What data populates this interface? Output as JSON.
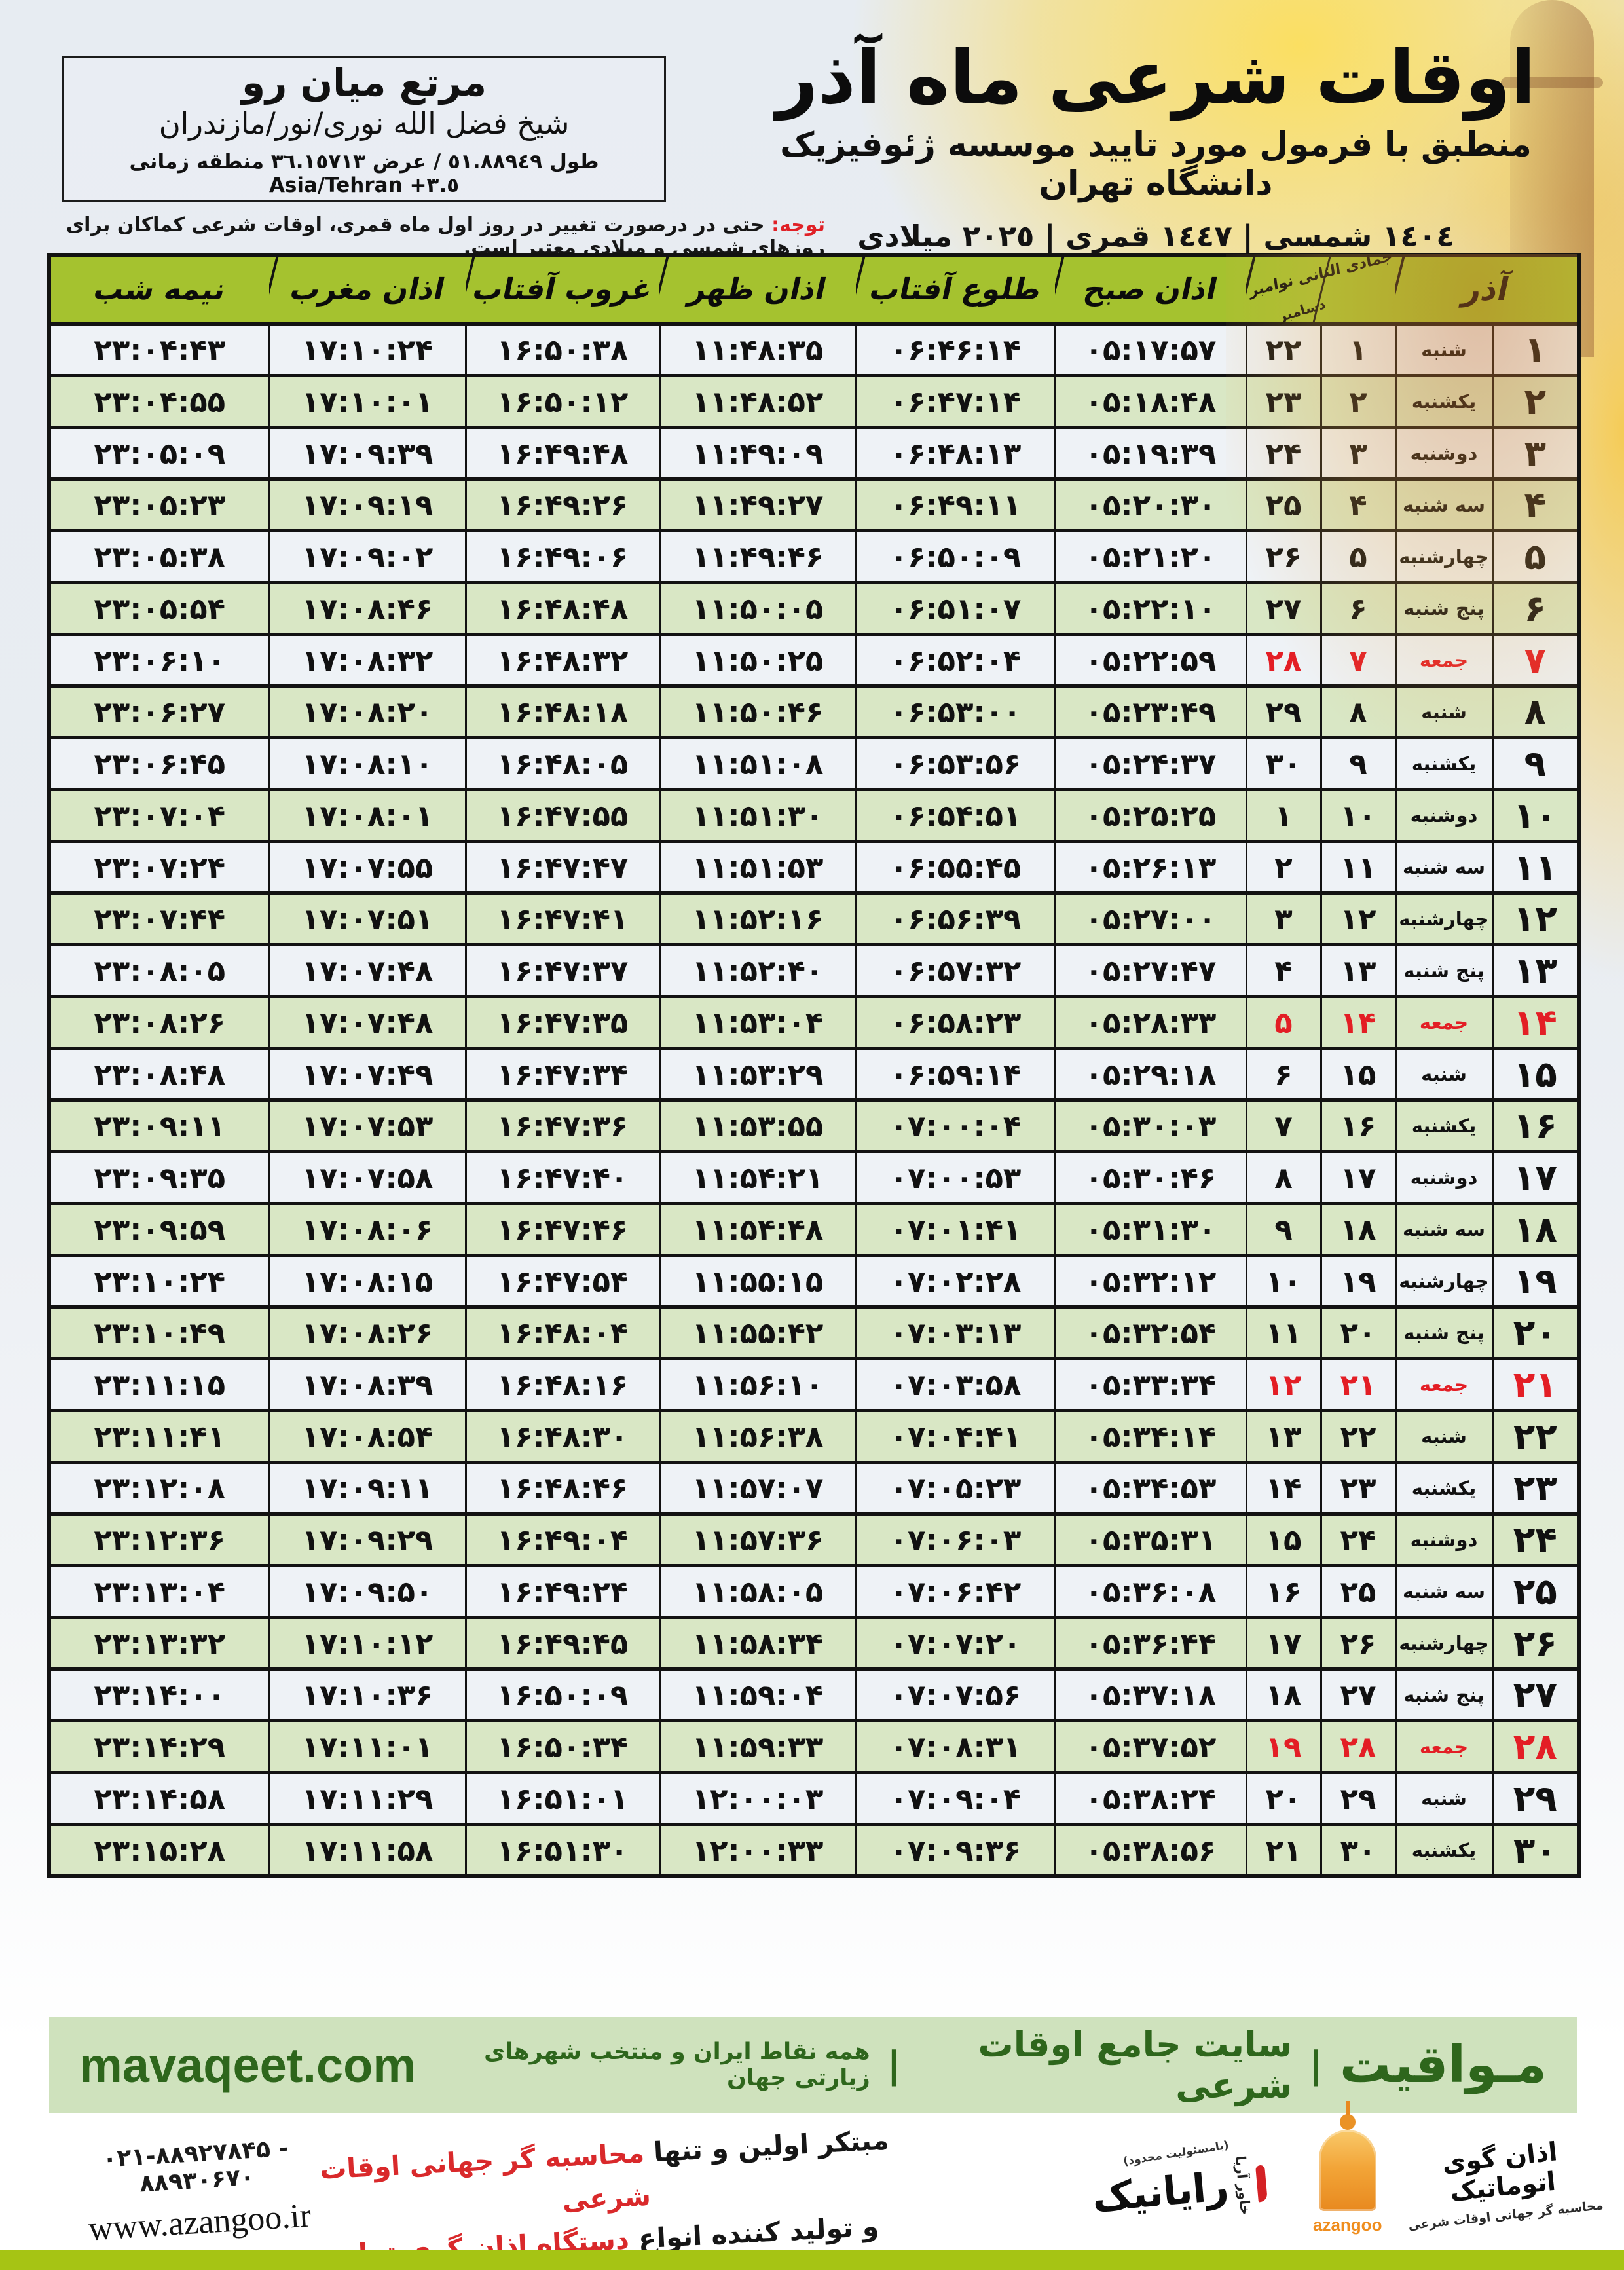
{
  "header": {
    "title": "اوقات شرعی ماه آذر",
    "subtitle": "منطبق با فرمول مورد تایید موسسه ژئوفیزیک دانشگاه تهران",
    "calendar_line": "١٤٠٤ شمسی | ١٤٤٧ قمری | ٢٠٢٥ میلادی"
  },
  "location_box": {
    "name": "مرتع میان رو",
    "region": "شیخ فضل الله نوری/نور/مازندران",
    "coords_rtl": "طول ٥١.٨٨٩٤٩ / عرض ٣٦.١٥٧١٣ منطقه زمانی",
    "coords_ltr": "Asia/Tehran +٣.٥"
  },
  "notice": {
    "label": "توجه:",
    "text": " حتی در درصورت تغییر در روز اول ماه قمری، اوقات شرعی کماکان برای روزهای شمسی و میلادی معتبر است."
  },
  "table": {
    "month_header": "آذر",
    "dual_header_top": "جمادی الثانی نوامبر",
    "dual_header_bottom": "دسامبر",
    "time_headers": [
      "اذان صبح",
      "طلوع آفتاب",
      "اذان ظهر",
      "غروب آفتاب",
      "اذان مغرب",
      "نیمه شب"
    ],
    "friday_label": "جمعه",
    "rows": [
      {
        "d": "۱",
        "w": "شنبه",
        "l": "۱",
        "g": "۲۲",
        "t": [
          "۰۵:۱۷:۵۷",
          "۰۶:۴۶:۱۴",
          "۱۱:۴۸:۳۵",
          "۱۶:۵۰:۳۸",
          "۱۷:۱۰:۲۴",
          "۲۳:۰۴:۴۳"
        ]
      },
      {
        "d": "۲",
        "w": "یکشنبه",
        "l": "۲",
        "g": "۲۳",
        "t": [
          "۰۵:۱۸:۴۸",
          "۰۶:۴۷:۱۴",
          "۱۱:۴۸:۵۲",
          "۱۶:۵۰:۱۲",
          "۱۷:۱۰:۰۱",
          "۲۳:۰۴:۵۵"
        ]
      },
      {
        "d": "۳",
        "w": "دوشنبه",
        "l": "۳",
        "g": "۲۴",
        "t": [
          "۰۵:۱۹:۳۹",
          "۰۶:۴۸:۱۳",
          "۱۱:۴۹:۰۹",
          "۱۶:۴۹:۴۸",
          "۱۷:۰۹:۳۹",
          "۲۳:۰۵:۰۹"
        ]
      },
      {
        "d": "۴",
        "w": "سه شنبه",
        "l": "۴",
        "g": "۲۵",
        "t": [
          "۰۵:۲۰:۳۰",
          "۰۶:۴۹:۱۱",
          "۱۱:۴۹:۲۷",
          "۱۶:۴۹:۲۶",
          "۱۷:۰۹:۱۹",
          "۲۳:۰۵:۲۳"
        ]
      },
      {
        "d": "۵",
        "w": "چهارشنبه",
        "l": "۵",
        "g": "۲۶",
        "t": [
          "۰۵:۲۱:۲۰",
          "۰۶:۵۰:۰۹",
          "۱۱:۴۹:۴۶",
          "۱۶:۴۹:۰۶",
          "۱۷:۰۹:۰۲",
          "۲۳:۰۵:۳۸"
        ]
      },
      {
        "d": "۶",
        "w": "پنج شنبه",
        "l": "۶",
        "g": "۲۷",
        "t": [
          "۰۵:۲۲:۱۰",
          "۰۶:۵۱:۰۷",
          "۱۱:۵۰:۰۵",
          "۱۶:۴۸:۴۸",
          "۱۷:۰۸:۴۶",
          "۲۳:۰۵:۵۴"
        ]
      },
      {
        "d": "۷",
        "w": "جمعه",
        "l": "۷",
        "g": "۲۸",
        "t": [
          "۰۵:۲۲:۵۹",
          "۰۶:۵۲:۰۴",
          "۱۱:۵۰:۲۵",
          "۱۶:۴۸:۳۲",
          "۱۷:۰۸:۳۲",
          "۲۳:۰۶:۱۰"
        ]
      },
      {
        "d": "۸",
        "w": "شنبه",
        "l": "۸",
        "g": "۲۹",
        "t": [
          "۰۵:۲۳:۴۹",
          "۰۶:۵۳:۰۰",
          "۱۱:۵۰:۴۶",
          "۱۶:۴۸:۱۸",
          "۱۷:۰۸:۲۰",
          "۲۳:۰۶:۲۷"
        ]
      },
      {
        "d": "۹",
        "w": "یکشنبه",
        "l": "۹",
        "g": "۳۰",
        "t": [
          "۰۵:۲۴:۳۷",
          "۰۶:۵۳:۵۶",
          "۱۱:۵۱:۰۸",
          "۱۶:۴۸:۰۵",
          "۱۷:۰۸:۱۰",
          "۲۳:۰۶:۴۵"
        ]
      },
      {
        "d": "۱۰",
        "w": "دوشنبه",
        "l": "۱۰",
        "g": "۱",
        "t": [
          "۰۵:۲۵:۲۵",
          "۰۶:۵۴:۵۱",
          "۱۱:۵۱:۳۰",
          "۱۶:۴۷:۵۵",
          "۱۷:۰۸:۰۱",
          "۲۳:۰۷:۰۴"
        ]
      },
      {
        "d": "۱۱",
        "w": "سه شنبه",
        "l": "۱۱",
        "g": "۲",
        "t": [
          "۰۵:۲۶:۱۳",
          "۰۶:۵۵:۴۵",
          "۱۱:۵۱:۵۳",
          "۱۶:۴۷:۴۷",
          "۱۷:۰۷:۵۵",
          "۲۳:۰۷:۲۴"
        ]
      },
      {
        "d": "۱۲",
        "w": "چهارشنبه",
        "l": "۱۲",
        "g": "۳",
        "t": [
          "۰۵:۲۷:۰۰",
          "۰۶:۵۶:۳۹",
          "۱۱:۵۲:۱۶",
          "۱۶:۴۷:۴۱",
          "۱۷:۰۷:۵۱",
          "۲۳:۰۷:۴۴"
        ]
      },
      {
        "d": "۱۳",
        "w": "پنج شنبه",
        "l": "۱۳",
        "g": "۴",
        "t": [
          "۰۵:۲۷:۴۷",
          "۰۶:۵۷:۳۲",
          "۱۱:۵۲:۴۰",
          "۱۶:۴۷:۳۷",
          "۱۷:۰۷:۴۸",
          "۲۳:۰۸:۰۵"
        ]
      },
      {
        "d": "۱۴",
        "w": "جمعه",
        "l": "۱۴",
        "g": "۵",
        "t": [
          "۰۵:۲۸:۳۳",
          "۰۶:۵۸:۲۳",
          "۱۱:۵۳:۰۴",
          "۱۶:۴۷:۳۵",
          "۱۷:۰۷:۴۸",
          "۲۳:۰۸:۲۶"
        ]
      },
      {
        "d": "۱۵",
        "w": "شنبه",
        "l": "۱۵",
        "g": "۶",
        "t": [
          "۰۵:۲۹:۱۸",
          "۰۶:۵۹:۱۴",
          "۱۱:۵۳:۲۹",
          "۱۶:۴۷:۳۴",
          "۱۷:۰۷:۴۹",
          "۲۳:۰۸:۴۸"
        ]
      },
      {
        "d": "۱۶",
        "w": "یکشنبه",
        "l": "۱۶",
        "g": "۷",
        "t": [
          "۰۵:۳۰:۰۳",
          "۰۷:۰۰:۰۴",
          "۱۱:۵۳:۵۵",
          "۱۶:۴۷:۳۶",
          "۱۷:۰۷:۵۳",
          "۲۳:۰۹:۱۱"
        ]
      },
      {
        "d": "۱۷",
        "w": "دوشنبه",
        "l": "۱۷",
        "g": "۸",
        "t": [
          "۰۵:۳۰:۴۶",
          "۰۷:۰۰:۵۳",
          "۱۱:۵۴:۲۱",
          "۱۶:۴۷:۴۰",
          "۱۷:۰۷:۵۸",
          "۲۳:۰۹:۳۵"
        ]
      },
      {
        "d": "۱۸",
        "w": "سه شنبه",
        "l": "۱۸",
        "g": "۹",
        "t": [
          "۰۵:۳۱:۳۰",
          "۰۷:۰۱:۴۱",
          "۱۱:۵۴:۴۸",
          "۱۶:۴۷:۴۶",
          "۱۷:۰۸:۰۶",
          "۲۳:۰۹:۵۹"
        ]
      },
      {
        "d": "۱۹",
        "w": "چهارشنبه",
        "l": "۱۹",
        "g": "۱۰",
        "t": [
          "۰۵:۳۲:۱۲",
          "۰۷:۰۲:۲۸",
          "۱۱:۵۵:۱۵",
          "۱۶:۴۷:۵۴",
          "۱۷:۰۸:۱۵",
          "۲۳:۱۰:۲۴"
        ]
      },
      {
        "d": "۲۰",
        "w": "پنج شنبه",
        "l": "۲۰",
        "g": "۱۱",
        "t": [
          "۰۵:۳۲:۵۴",
          "۰۷:۰۳:۱۳",
          "۱۱:۵۵:۴۲",
          "۱۶:۴۸:۰۴",
          "۱۷:۰۸:۲۶",
          "۲۳:۱۰:۴۹"
        ]
      },
      {
        "d": "۲۱",
        "w": "جمعه",
        "l": "۲۱",
        "g": "۱۲",
        "t": [
          "۰۵:۳۳:۳۴",
          "۰۷:۰۳:۵۸",
          "۱۱:۵۶:۱۰",
          "۱۶:۴۸:۱۶",
          "۱۷:۰۸:۳۹",
          "۲۳:۱۱:۱۵"
        ]
      },
      {
        "d": "۲۲",
        "w": "شنبه",
        "l": "۲۲",
        "g": "۱۳",
        "t": [
          "۰۵:۳۴:۱۴",
          "۰۷:۰۴:۴۱",
          "۱۱:۵۶:۳۸",
          "۱۶:۴۸:۳۰",
          "۱۷:۰۸:۵۴",
          "۲۳:۱۱:۴۱"
        ]
      },
      {
        "d": "۲۳",
        "w": "یکشنبه",
        "l": "۲۳",
        "g": "۱۴",
        "t": [
          "۰۵:۳۴:۵۳",
          "۰۷:۰۵:۲۳",
          "۱۱:۵۷:۰۷",
          "۱۶:۴۸:۴۶",
          "۱۷:۰۹:۱۱",
          "۲۳:۱۲:۰۸"
        ]
      },
      {
        "d": "۲۴",
        "w": "دوشنبه",
        "l": "۲۴",
        "g": "۱۵",
        "t": [
          "۰۵:۳۵:۳۱",
          "۰۷:۰۶:۰۳",
          "۱۱:۵۷:۳۶",
          "۱۶:۴۹:۰۴",
          "۱۷:۰۹:۲۹",
          "۲۳:۱۲:۳۶"
        ]
      },
      {
        "d": "۲۵",
        "w": "سه شنبه",
        "l": "۲۵",
        "g": "۱۶",
        "t": [
          "۰۵:۳۶:۰۸",
          "۰۷:۰۶:۴۲",
          "۱۱:۵۸:۰۵",
          "۱۶:۴۹:۲۴",
          "۱۷:۰۹:۵۰",
          "۲۳:۱۳:۰۴"
        ]
      },
      {
        "d": "۲۶",
        "w": "چهارشنبه",
        "l": "۲۶",
        "g": "۱۷",
        "t": [
          "۰۵:۳۶:۴۴",
          "۰۷:۰۷:۲۰",
          "۱۱:۵۸:۳۴",
          "۱۶:۴۹:۴۵",
          "۱۷:۱۰:۱۲",
          "۲۳:۱۳:۳۲"
        ]
      },
      {
        "d": "۲۷",
        "w": "پنج شنبه",
        "l": "۲۷",
        "g": "۱۸",
        "t": [
          "۰۵:۳۷:۱۸",
          "۰۷:۰۷:۵۶",
          "۱۱:۵۹:۰۴",
          "۱۶:۵۰:۰۹",
          "۱۷:۱۰:۳۶",
          "۲۳:۱۴:۰۰"
        ]
      },
      {
        "d": "۲۸",
        "w": "جمعه",
        "l": "۲۸",
        "g": "۱۹",
        "t": [
          "۰۵:۳۷:۵۲",
          "۰۷:۰۸:۳۱",
          "۱۱:۵۹:۳۳",
          "۱۶:۵۰:۳۴",
          "۱۷:۱۱:۰۱",
          "۲۳:۱۴:۲۹"
        ]
      },
      {
        "d": "۲۹",
        "w": "شنبه",
        "l": "۲۹",
        "g": "۲۰",
        "t": [
          "۰۵:۳۸:۲۴",
          "۰۷:۰۹:۰۴",
          "۱۲:۰۰:۰۳",
          "۱۶:۵۱:۰۱",
          "۱۷:۱۱:۲۹",
          "۲۳:۱۴:۵۸"
        ]
      },
      {
        "d": "۳۰",
        "w": "یکشنبه",
        "l": "۳۰",
        "g": "۲۱",
        "t": [
          "۰۵:۳۸:۵۶",
          "۰۷:۰۹:۳۶",
          "۱۲:۰۰:۳۳",
          "۱۶:۵۱:۳۰",
          "۱۷:۱۱:۵۸",
          "۲۳:۱۵:۲۸"
        ]
      }
    ]
  },
  "footer": {
    "brand": "مـواقیت",
    "divider": "|",
    "site_desc": "سایت جامع اوقات شرعی",
    "coverage": "همه نقاط ایران و منتخب شهرهای زیارتی جهان",
    "url": "mavaqeet.com"
  },
  "bottom": {
    "phone": "۰۲۱-۸۸۹۲۷۸۴۵ - ۸۸۹۳۰۶۷۰",
    "website": "www.azangoo.ir",
    "slogan1_black": "مبتکر اولین و تنها ",
    "slogan1_red": "محاسبه گر جهانی اوقات شرعی",
    "slogan2_black": "و تولید کننده انواع ",
    "slogan2_red": "دستگاه اذان گوی تمام خودکار ماهواره ای",
    "rayanik_small": "(بامسئولیت محدود)",
    "rayanik_name": "رایانیک",
    "rayanik_sub": "خاور آریا",
    "azangoo_wordmark": "اذان گوی اتوماتیک",
    "azangoo_latin": "azangoo",
    "azangoo_tagline": "محاسبه گر جهانی اوقات شرعی"
  }
}
